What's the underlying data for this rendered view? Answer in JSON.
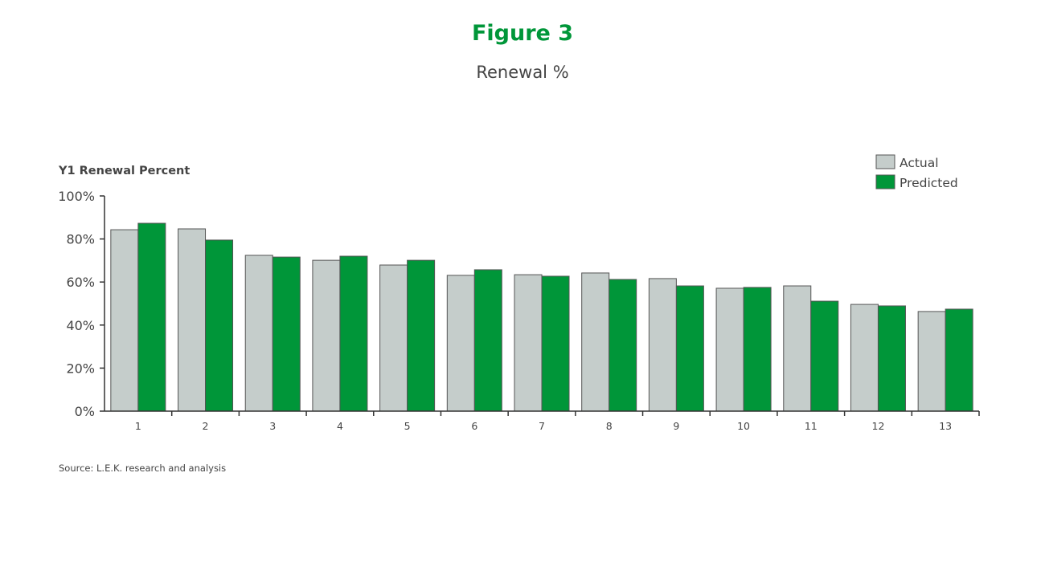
{
  "title": "Figure 3",
  "subtitle": "Renewal %",
  "source": "Source: L.E.K. research and analysis",
  "chart_data": {
    "type": "bar",
    "ylabel": "Y1 Renewal Percent",
    "xlabel": "",
    "ylim": [
      0,
      100
    ],
    "yticks": [
      "0%",
      "20%",
      "40%",
      "60%",
      "80%",
      "100%"
    ],
    "categories": [
      "1",
      "2",
      "3",
      "4",
      "5",
      "6",
      "7",
      "8",
      "9",
      "10",
      "11",
      "12",
      "13"
    ],
    "series": [
      {
        "name": "Actual",
        "color": "#c5cdcb",
        "values": [
          84.3,
          84.7,
          72.4,
          70.1,
          67.9,
          63.1,
          63.4,
          64.2,
          61.6,
          57.1,
          58.2,
          49.6,
          46.3
        ]
      },
      {
        "name": "Predicted",
        "color": "#009639",
        "values": [
          87.3,
          79.5,
          71.6,
          72.0,
          70.1,
          65.7,
          62.7,
          61.2,
          58.2,
          57.5,
          51.1,
          48.9,
          47.4
        ]
      }
    ],
    "legend": "top-right",
    "grid": false
  }
}
